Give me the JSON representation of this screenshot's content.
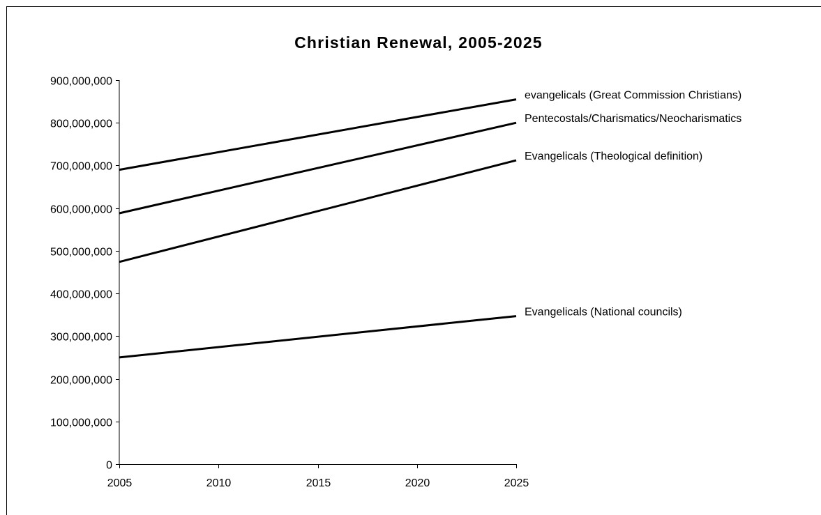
{
  "chart_data": {
    "type": "line",
    "title": "Christian Renewal, 2005-2025",
    "xlabel": "",
    "ylabel": "",
    "x": [
      2005,
      2025
    ],
    "x_ticks": [
      "2005",
      "2010",
      "2015",
      "2020",
      "2025"
    ],
    "x_tick_values": [
      2005,
      2010,
      2015,
      2020,
      2025
    ],
    "y_ticks": [
      "0",
      "100,000,000",
      "200,000,000",
      "300,000,000",
      "400,000,000",
      "500,000,000",
      "600,000,000",
      "700,000,000",
      "800,000,000",
      "900,000,000"
    ],
    "y_tick_values": [
      0,
      100000000,
      200000000,
      300000000,
      400000000,
      500000000,
      600000000,
      700000000,
      800000000,
      900000000
    ],
    "xlim": [
      2005,
      2025
    ],
    "ylim": [
      0,
      900000000
    ],
    "grid": false,
    "legend": "inline labels at line ends",
    "series": [
      {
        "name": "evangelicals (Great Commission Christians)",
        "values": [
          690000000,
          855000000
        ]
      },
      {
        "name": "Pentecostals/Charismatics/Neocharismatics",
        "values": [
          588000000,
          800000000
        ]
      },
      {
        "name": "Evangelicals (Theological definition)",
        "values": [
          474000000,
          712000000
        ]
      },
      {
        "name": "Evangelicals (National councils)",
        "values": [
          250000000,
          347000000
        ]
      }
    ]
  },
  "colors": {
    "line": "#000000",
    "background": "#ffffff"
  }
}
